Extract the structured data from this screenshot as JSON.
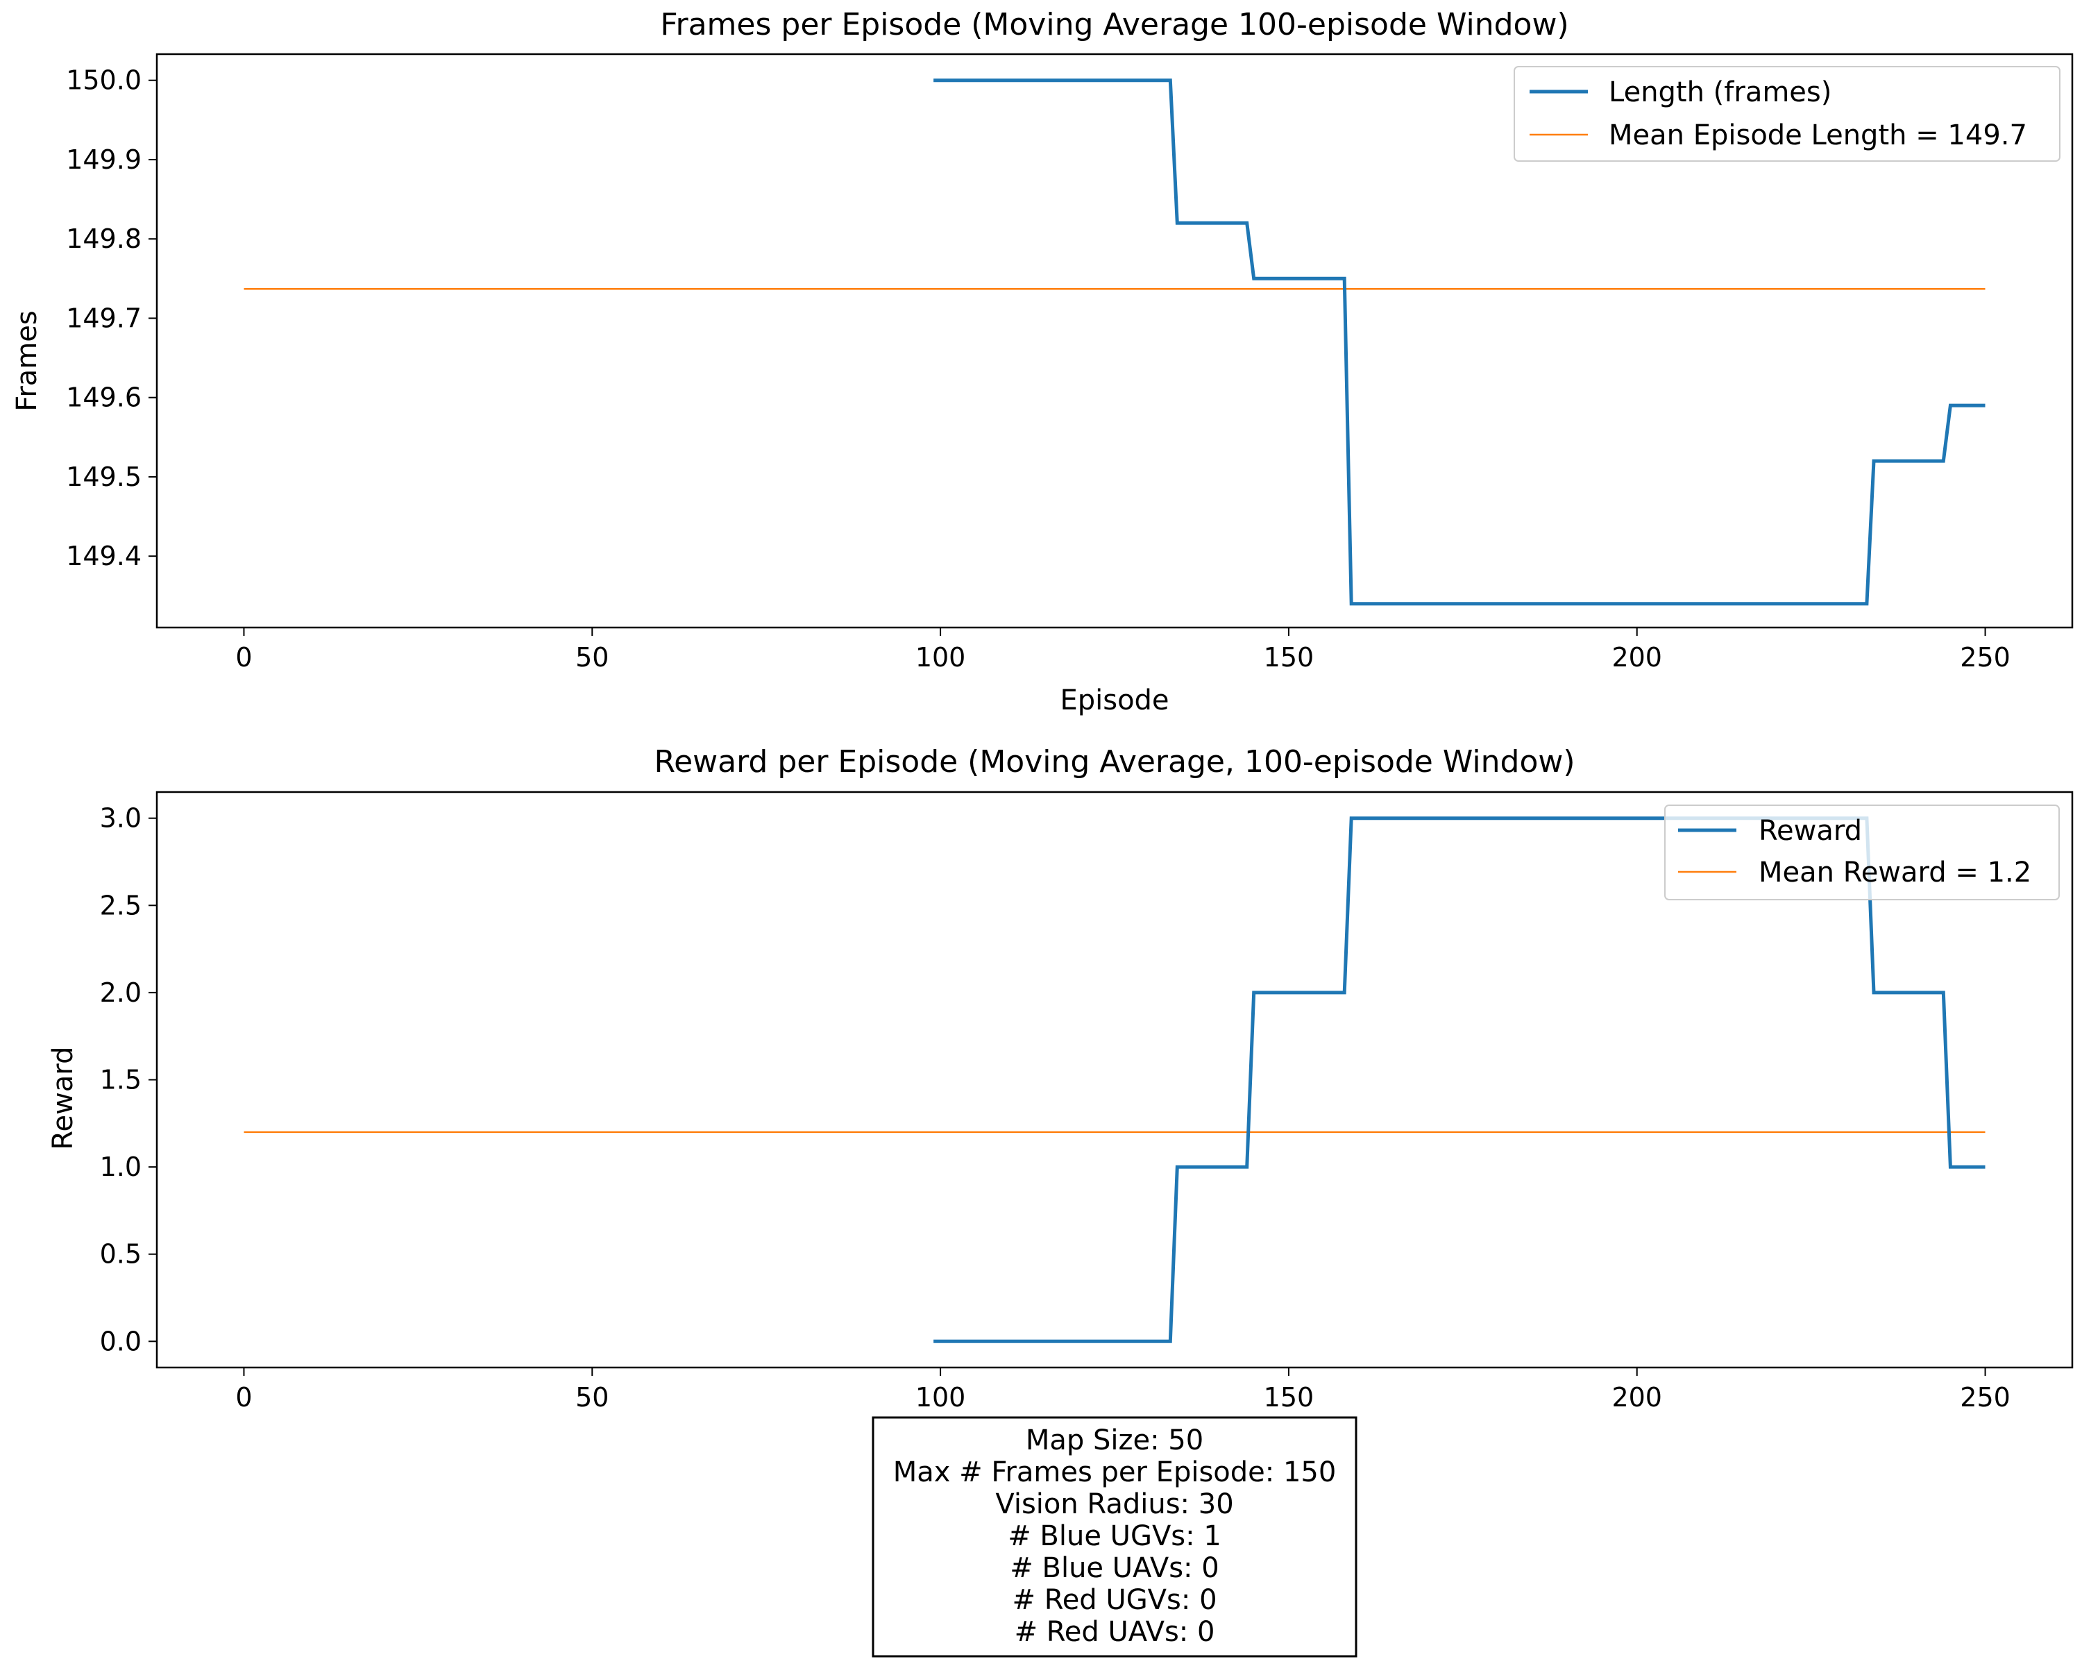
{
  "chart_data": [
    {
      "type": "line",
      "title": "Frames per Episode (Moving Average 100-episode Window)",
      "xlabel": "Episode",
      "ylabel": "Frames",
      "xlim": [
        -12.5,
        262.5
      ],
      "ylim": [
        149.31,
        150.033
      ],
      "xticks": [
        "0",
        "50",
        "100",
        "150",
        "200",
        "250"
      ],
      "yticks": [
        "149.4",
        "149.5",
        "149.6",
        "149.7",
        "149.8",
        "149.9",
        "150.0"
      ],
      "legend_position": "top-right",
      "colors": {
        "series": "#1f77b4",
        "mean": "#ff7f0e"
      },
      "series": [
        {
          "name": "Length (frames)",
          "x": [
            99,
            133,
            134,
            144,
            145,
            158,
            159,
            233,
            234,
            244,
            245,
            250
          ],
          "y": [
            150.0,
            150.0,
            149.82,
            149.82,
            149.75,
            149.75,
            149.34,
            149.34,
            149.52,
            149.52,
            149.59,
            149.59
          ]
        },
        {
          "name": "Mean Episode Length = 149.7",
          "x": [
            0,
            250
          ],
          "y": [
            149.737,
            149.737
          ]
        }
      ]
    },
    {
      "type": "line",
      "title": "Reward per Episode (Moving Average, 100-episode Window)",
      "xlabel": "",
      "ylabel": "Reward",
      "xlim": [
        -12.5,
        262.5
      ],
      "ylim": [
        -0.15,
        3.15
      ],
      "xticks": [
        "0",
        "50",
        "100",
        "150",
        "200",
        "250"
      ],
      "yticks": [
        "0.0",
        "0.5",
        "1.0",
        "1.5",
        "2.0",
        "2.5",
        "3.0"
      ],
      "legend_position": "top-right",
      "colors": {
        "series": "#1f77b4",
        "mean": "#ff7f0e"
      },
      "series": [
        {
          "name": "Reward",
          "x": [
            99,
            133,
            134,
            144,
            145,
            158,
            159,
            233,
            234,
            244,
            245,
            250
          ],
          "y": [
            0,
            0,
            1,
            1,
            2,
            2,
            3,
            3,
            2,
            2,
            1,
            1
          ]
        },
        {
          "name": "Mean Reward = 1.2",
          "x": [
            0,
            250
          ],
          "y": [
            1.2,
            1.2
          ]
        }
      ]
    }
  ],
  "info_box": {
    "lines": [
      "Map Size: 50",
      "Max # Frames per Episode: 150",
      "Vision Radius: 30",
      "# Blue UGVs: 1",
      "# Blue UAVs: 0",
      "# Red UGVs: 0",
      "# Red UAVs: 0"
    ]
  }
}
